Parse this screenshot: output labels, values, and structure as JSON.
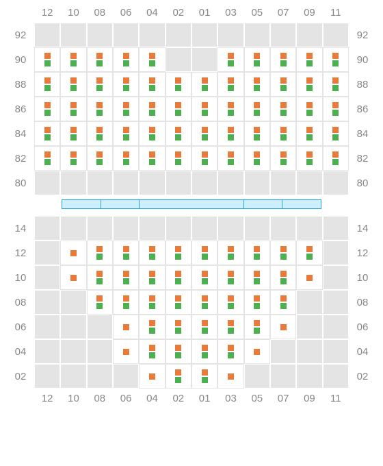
{
  "colors": {
    "marker1": "#e87b3a",
    "marker2": "#4caf50",
    "grid_bg": "#e4e4e4",
    "cell_active_bg": "#ffffff",
    "label": "#888888",
    "stage_fill": "#cceeff",
    "stage_border": "#29a0e0"
  },
  "columns": [
    "12",
    "10",
    "08",
    "06",
    "04",
    "02",
    "01",
    "03",
    "05",
    "07",
    "09",
    "11"
  ],
  "upper": {
    "row_labels": [
      "92",
      "90",
      "88",
      "86",
      "84",
      "82",
      "80"
    ],
    "rows": [
      [
        0,
        0,
        0,
        0,
        0,
        0,
        0,
        0,
        0,
        0,
        0,
        0
      ],
      [
        2,
        2,
        2,
        2,
        2,
        0,
        0,
        2,
        2,
        2,
        2,
        2
      ],
      [
        2,
        2,
        2,
        2,
        2,
        2,
        2,
        2,
        2,
        2,
        2,
        2
      ],
      [
        2,
        2,
        2,
        2,
        2,
        2,
        2,
        2,
        2,
        2,
        2,
        2
      ],
      [
        2,
        2,
        2,
        2,
        2,
        2,
        2,
        2,
        2,
        2,
        2,
        2
      ],
      [
        2,
        2,
        2,
        2,
        2,
        2,
        2,
        2,
        2,
        2,
        2,
        2
      ],
      [
        0,
        0,
        0,
        0,
        0,
        0,
        0,
        0,
        0,
        0,
        0,
        0
      ]
    ]
  },
  "stage_segments": [
    14,
    14,
    38,
    14,
    14
  ],
  "lower": {
    "row_labels": [
      "14",
      "12",
      "10",
      "08",
      "06",
      "04",
      "02"
    ],
    "rows": [
      [
        0,
        0,
        0,
        0,
        0,
        0,
        0,
        0,
        0,
        0,
        0,
        0
      ],
      [
        0,
        1,
        2,
        2,
        2,
        2,
        2,
        2,
        2,
        2,
        2,
        0
      ],
      [
        0,
        1,
        2,
        2,
        2,
        2,
        2,
        2,
        2,
        2,
        1,
        0
      ],
      [
        0,
        0,
        2,
        2,
        2,
        2,
        2,
        2,
        2,
        2,
        0,
        0
      ],
      [
        0,
        0,
        0,
        1,
        2,
        2,
        2,
        2,
        2,
        1,
        0,
        0
      ],
      [
        0,
        0,
        0,
        1,
        2,
        2,
        2,
        2,
        1,
        0,
        0,
        0
      ],
      [
        0,
        0,
        0,
        0,
        1,
        2,
        2,
        1,
        0,
        0,
        0,
        0
      ]
    ]
  }
}
